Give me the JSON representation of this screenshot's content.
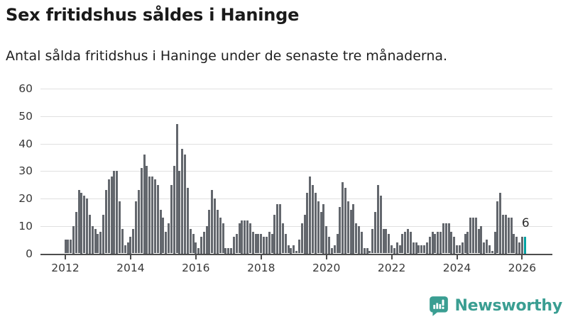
{
  "header": {
    "title": "Sex fritidshus såldes i Haninge",
    "subtitle": "Antal sålda fritidshus i Haninge under de senaste tre månaderna."
  },
  "chart_data": {
    "type": "bar",
    "title": "Sex fritidshus såldes i Haninge",
    "subtitle": "Antal sålda fritidshus i Haninge under de senaste tre månaderna.",
    "x_start": "2012-01",
    "x_interval": "month",
    "xlabel": "",
    "ylabel": "",
    "ylim": [
      0,
      62
    ],
    "grid": "horizontal",
    "y_ticks": [
      0,
      10,
      20,
      30,
      40,
      50,
      60
    ],
    "x_tick_years": [
      2012,
      2014,
      2016,
      2018,
      2020,
      2022,
      2024,
      2026
    ],
    "values": [
      5,
      5,
      5,
      10,
      15,
      23,
      22,
      21,
      20,
      14,
      10,
      9,
      7,
      8,
      14,
      23,
      27,
      28,
      30,
      30,
      19,
      9,
      3,
      4,
      6,
      9,
      19,
      23,
      31,
      36,
      32,
      28,
      28,
      27,
      25,
      16,
      13,
      8,
      11,
      25,
      32,
      47,
      30,
      38,
      36,
      24,
      9,
      7,
      4,
      2,
      6,
      8,
      10,
      16,
      23,
      20,
      16,
      13,
      11,
      2,
      2,
      2,
      6,
      7,
      11,
      12,
      12,
      12,
      11,
      8,
      7,
      7,
      7,
      6,
      6,
      8,
      7,
      14,
      18,
      18,
      11,
      7,
      3,
      2,
      3,
      1,
      5,
      11,
      14,
      22,
      28,
      25,
      22,
      19,
      15,
      18,
      10,
      6,
      2,
      3,
      7,
      17,
      26,
      24,
      19,
      16,
      18,
      11,
      10,
      8,
      2,
      2,
      1,
      9,
      15,
      25,
      21,
      9,
      9,
      7,
      3,
      2,
      4,
      3,
      7,
      8,
      9,
      8,
      4,
      4,
      3,
      3,
      3,
      4,
      6,
      8,
      7,
      8,
      8,
      11,
      11,
      11,
      8,
      6,
      3,
      3,
      4,
      7,
      8,
      13,
      13,
      13,
      9,
      10,
      4,
      5,
      3,
      1,
      8,
      19,
      22,
      14,
      14,
      13,
      13,
      7,
      6,
      4,
      6,
      6
    ],
    "highlight_last_bar": true,
    "last_value_label": "6",
    "colors": {
      "bar": "#63676d",
      "highlight": "#00a2a2",
      "gridline": "#e0e0e0",
      "axis": "#4d4d4d",
      "tick_text": "#383838"
    }
  },
  "branding": {
    "logo_text": "Newsworthy",
    "logo_color": "#3a9e92",
    "logo_icon": "speech-bubble-bar-chart-icon"
  }
}
